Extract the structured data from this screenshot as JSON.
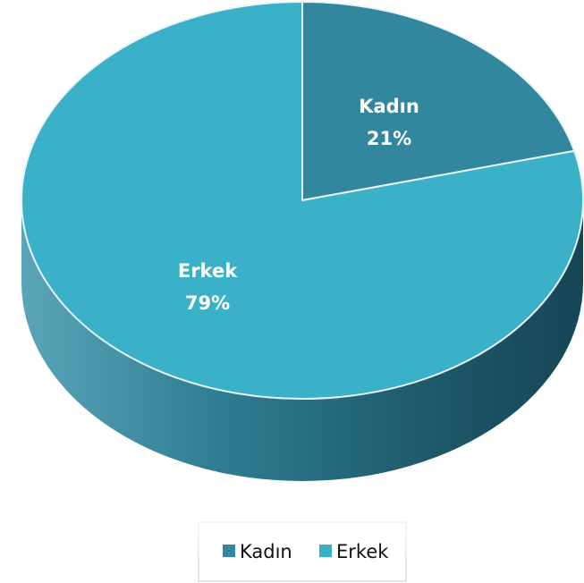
{
  "chart_data": {
    "type": "pie",
    "title": "",
    "categories": [
      "Kadın",
      "Erkek"
    ],
    "values": [
      21,
      79
    ],
    "value_format": "percent",
    "colors": {
      "Kadın": "#32879e",
      "Erkek": "#3bb0c9"
    },
    "side_color": "#1f6073",
    "style": "3d",
    "legend_position": "bottom",
    "labels": [
      {
        "name": "Kadın",
        "value": "21%"
      },
      {
        "name": "Erkek",
        "value": "79%"
      }
    ]
  }
}
